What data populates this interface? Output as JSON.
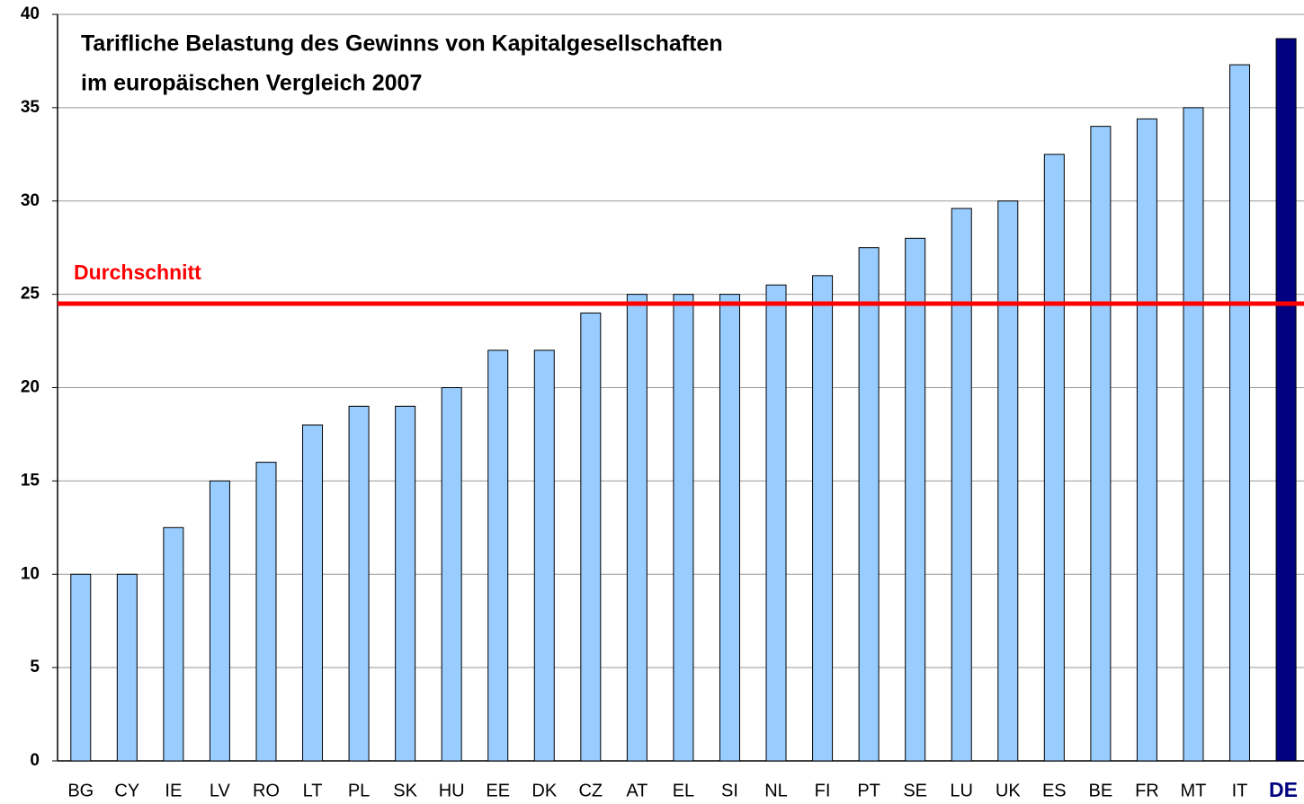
{
  "chart_data": {
    "type": "bar",
    "title": [
      "Tarifliche Belastung des Gewinns von Kapitalgesellschaften",
      "im europäischen Vergleich 2007"
    ],
    "categories": [
      "BG",
      "CY",
      "IE",
      "LV",
      "RO",
      "LT",
      "PL",
      "SK",
      "HU",
      "EE",
      "DK",
      "CZ",
      "AT",
      "EL",
      "SI",
      "NL",
      "FI",
      "PT",
      "SE",
      "LU",
      "UK",
      "ES",
      "BE",
      "FR",
      "MT",
      "IT",
      "DE"
    ],
    "values": [
      10,
      10,
      12.5,
      15,
      16,
      18,
      19,
      19,
      20,
      22,
      22,
      24,
      25,
      25,
      25,
      25.5,
      26,
      27.5,
      28,
      29.6,
      30,
      32.5,
      34,
      34.4,
      35,
      37.3,
      38.7
    ],
    "color": "#99ccff",
    "highlight": "DE",
    "highlight_color": "#000080",
    "reference_line": {
      "label": "Durchschnitt",
      "value": 24.5,
      "color": "#ff0000"
    },
    "ylim": [
      0,
      40
    ],
    "yticks": [
      0,
      5,
      10,
      15,
      20,
      25,
      30,
      35,
      40
    ],
    "grid": true
  }
}
